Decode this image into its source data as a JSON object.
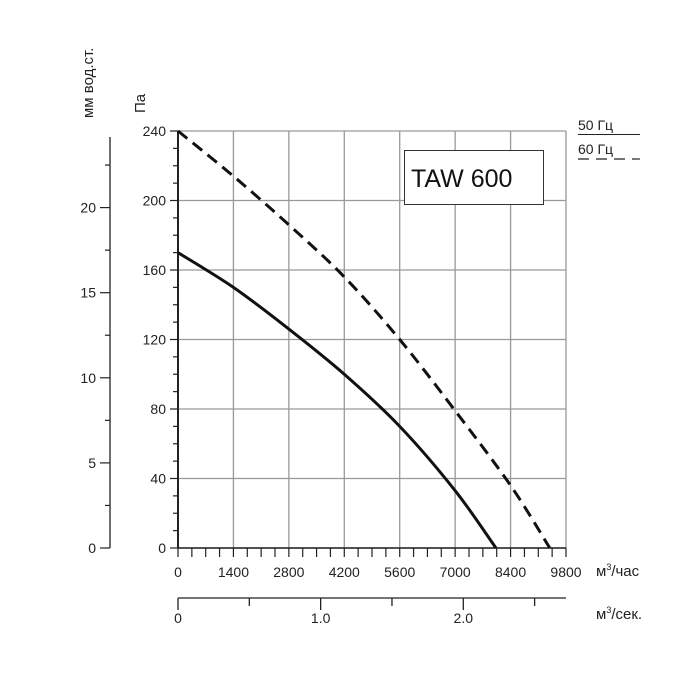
{
  "chart_data": {
    "type": "line",
    "title": "TAW 600",
    "xlabel": "м³/час",
    "xlabel_base": "м",
    "xlabel_sup": "3",
    "xlabel_rest": "/час",
    "ylabel": "Па",
    "ylabel_left": "мм вод.ст.",
    "xlim": [
      0,
      9800
    ],
    "ylim": [
      0,
      240
    ],
    "x_ticks": [
      0,
      1400,
      2800,
      4200,
      5600,
      7000,
      8400,
      9800
    ],
    "y_ticks": [
      0,
      40,
      80,
      120,
      160,
      200,
      240
    ],
    "grid": true,
    "secondary_y_axis": {
      "label": "мм вод.ст.",
      "ticks": [
        0,
        5,
        10,
        15,
        20
      ],
      "range": [
        0,
        24.5
      ]
    },
    "secondary_x_axis": {
      "label_base": "м",
      "label_sup": "3",
      "label_rest": "/сек.",
      "ticks": [
        "0",
        "1.0",
        "2.0"
      ],
      "tick_values": [
        0,
        1.0,
        2.0
      ],
      "range": [
        0,
        2.72
      ]
    },
    "legend": {
      "placement": "top-right",
      "items": [
        {
          "label": "50 Гц",
          "style": "solid"
        },
        {
          "label": "60 Гц",
          "style": "dashed"
        }
      ]
    },
    "series": [
      {
        "name": "50 Гц",
        "style": "solid",
        "color": "#111111",
        "x": [
          0,
          1400,
          2800,
          4200,
          5600,
          7000,
          8030
        ],
        "y": [
          170,
          150,
          126,
          100,
          70,
          33,
          0
        ]
      },
      {
        "name": "60 Гц",
        "style": "dashed",
        "color": "#111111",
        "x": [
          0,
          1400,
          2800,
          4200,
          5600,
          7000,
          8400,
          9390
        ],
        "y": [
          240,
          214,
          186,
          156,
          120,
          79,
          36,
          0
        ]
      }
    ]
  }
}
